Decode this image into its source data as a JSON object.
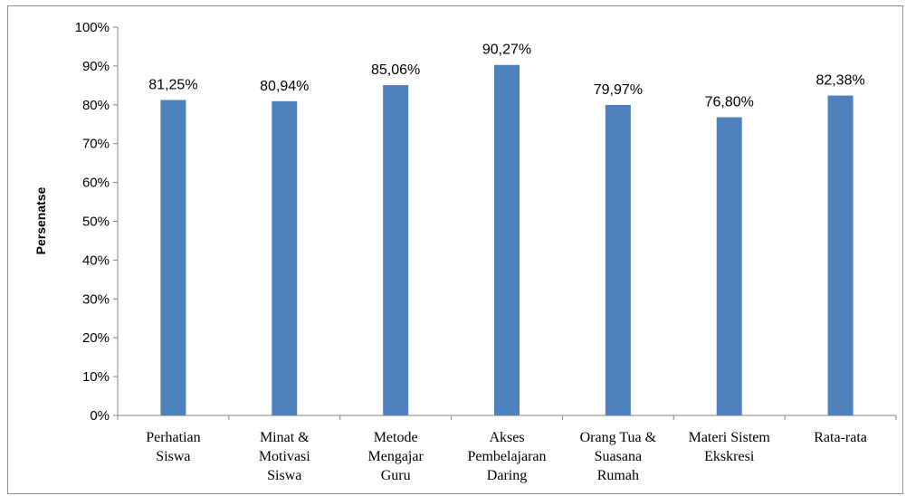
{
  "chart_data": {
    "type": "bar",
    "title": "",
    "xlabel": "",
    "ylabel": "Persenatse",
    "ylim": [
      0,
      100
    ],
    "yticks": [
      "0%",
      "10%",
      "20%",
      "30%",
      "40%",
      "50%",
      "60%",
      "70%",
      "80%",
      "90%",
      "100%"
    ],
    "grid": false,
    "legend": "none",
    "bar_color": "#4f81bd",
    "categories": [
      [
        "Perhatian",
        "Siswa"
      ],
      [
        "Minat &",
        "Motivasi",
        "Siswa"
      ],
      [
        "Metode",
        "Mengajar",
        "Guru"
      ],
      [
        "Akses",
        "Pembelajaran",
        "Daring"
      ],
      [
        "Orang Tua &",
        "Suasana",
        "Rumah"
      ],
      [
        "Materi Sistem",
        "Ekskresi"
      ],
      [
        "Rata-rata"
      ]
    ],
    "values": [
      81.25,
      80.94,
      85.06,
      90.27,
      79.97,
      76.8,
      82.38
    ],
    "data_labels": [
      "81,25%",
      "80,94%",
      "85,06%",
      "90,27%",
      "79,97%",
      "76,80%",
      "82,38%"
    ]
  }
}
